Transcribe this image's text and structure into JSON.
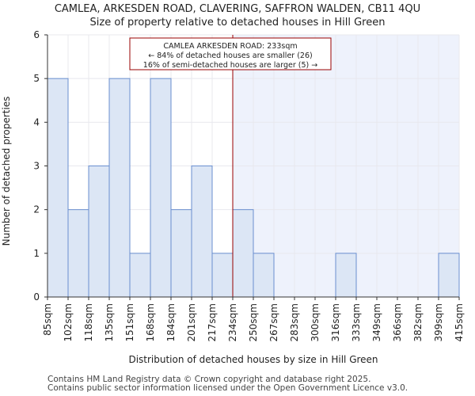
{
  "header": {
    "line1": "CAMLEA, ARKESDEN ROAD, CLAVERING, SAFFRON WALDEN, CB11 4QU",
    "line2": "Size of property relative to detached houses in Hill Green"
  },
  "chart_data": {
    "type": "bar",
    "xlabel": "Distribution of detached houses by size in Hill Green",
    "ylabel": "Number of detached properties",
    "ylim": [
      0,
      6
    ],
    "yticks": [
      0,
      1,
      2,
      3,
      4,
      5,
      6
    ],
    "bin_edges": [
      "85sqm",
      "102sqm",
      "118sqm",
      "135sqm",
      "151sqm",
      "168sqm",
      "184sqm",
      "201sqm",
      "217sqm",
      "234sqm",
      "250sqm",
      "267sqm",
      "283sqm",
      "300sqm",
      "316sqm",
      "333sqm",
      "349sqm",
      "366sqm",
      "382sqm",
      "399sqm",
      "415sqm"
    ],
    "values": [
      5,
      2,
      3,
      5,
      1,
      5,
      2,
      3,
      1,
      2,
      1,
      0,
      0,
      0,
      1,
      0,
      0,
      0,
      0,
      1
    ],
    "marker": {
      "value": 233,
      "bin_position": 9,
      "color": "#990000"
    },
    "annotation": {
      "line1": "CAMLEA ARKESDEN ROAD: 233sqm",
      "line2": "← 84% of detached houses are smaller (26)",
      "line3": "16% of semi-detached houses are larger (5) →"
    },
    "grid": true
  },
  "colors": {
    "bar_fill": "#dce6f5",
    "bar_edge": "#6a8fcf",
    "shade": "#eef2fc",
    "marker": "#990000"
  },
  "footer": {
    "line1": "Contains HM Land Registry data © Crown copyright and database right 2025.",
    "line2": "Contains public sector information licensed under the Open Government Licence v3.0."
  }
}
